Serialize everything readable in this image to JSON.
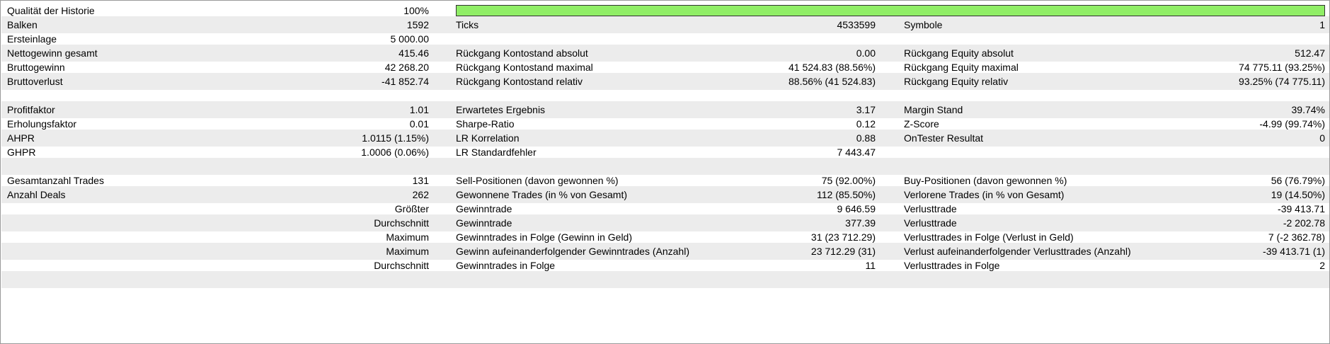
{
  "quality": {
    "label": "Qualität der Historie",
    "value": "100%",
    "fraction": 1.0,
    "bar_color": "#90ee66"
  },
  "rows": {
    "r1": {
      "c0": "Balken",
      "c1": "1592",
      "c2": "Ticks",
      "c3": "4533599",
      "c4": "Symbole",
      "c5": "1"
    },
    "r2": {
      "c0": "Ersteinlage",
      "c1": "5 000.00"
    },
    "r3": {
      "c0": "Nettogewinn gesamt",
      "c1": "415.46",
      "c2": "Rückgang Kontostand absolut",
      "c3": "0.00",
      "c4": "Rückgang Equity absolut",
      "c5": "512.47"
    },
    "r4": {
      "c0": "Bruttogewinn",
      "c1": "42 268.20",
      "c2": "Rückgang Kontostand maximal",
      "c3": "41 524.83 (88.56%)",
      "c4": "Rückgang Equity maximal",
      "c5": "74 775.11 (93.25%)"
    },
    "r5": {
      "c0": "Bruttoverlust",
      "c1": "-41 852.74",
      "c2": "Rückgang Kontostand relativ",
      "c3": "88.56% (41 524.83)",
      "c4": "Rückgang Equity relativ",
      "c5": "93.25% (74 775.11)"
    },
    "r7": {
      "c0": "Profitfaktor",
      "c1": "1.01",
      "c2": "Erwartetes Ergebnis",
      "c3": "3.17",
      "c4": "Margin Stand",
      "c5": "39.74%"
    },
    "r8": {
      "c0": "Erholungsfaktor",
      "c1": "0.01",
      "c2": "Sharpe-Ratio",
      "c3": "0.12",
      "c4": "Z-Score",
      "c5": "-4.99 (99.74%)"
    },
    "r9": {
      "c0": "AHPR",
      "c1": "1.0115 (1.15%)",
      "c2": "LR Korrelation",
      "c3": "0.88",
      "c4": "OnTester Resultat",
      "c5": "0"
    },
    "r10": {
      "c0": "GHPR",
      "c1": "1.0006 (0.06%)",
      "c2": "LR Standardfehler",
      "c3": "7 443.47"
    },
    "r12": {
      "c0": "Gesamtanzahl Trades",
      "c1": "131",
      "c2": "Sell-Positionen (davon gewonnen %)",
      "c3": "75 (92.00%)",
      "c4": "Buy-Positionen (davon gewonnen %)",
      "c5": "56 (76.79%)"
    },
    "r13": {
      "c0": "Anzahl Deals",
      "c1": "262",
      "c2": "Gewonnene Trades (in % von Gesamt)",
      "c3": "112 (85.50%)",
      "c4": "Verlorene Trades (in % von Gesamt)",
      "c5": "19 (14.50%)"
    },
    "r14": {
      "c1": "Größter",
      "c2": "Gewinntrade",
      "c3": "9 646.59",
      "c4": "Verlusttrade",
      "c5": "-39 413.71"
    },
    "r15": {
      "c1": "Durchschnitt",
      "c2": "Gewinntrade",
      "c3": "377.39",
      "c4": "Verlusttrade",
      "c5": "-2 202.78"
    },
    "r16": {
      "c1": "Maximum",
      "c2": "Gewinntrades in Folge (Gewinn in Geld)",
      "c3": "31 (23 712.29)",
      "c4": "Verlusttrades in Folge (Verlust in Geld)",
      "c5": "7 (-2 362.78)"
    },
    "r17": {
      "c1": "Maximum",
      "c2": "Gewinn aufeinanderfolgender Gewinntrades (Anzahl)",
      "c3": "23 712.29 (31)",
      "c4": "Verlust aufeinanderfolgender Verlusttrades (Anzahl)",
      "c5": "-39 413.71 (1)"
    },
    "r18": {
      "c1": "Durchschnitt",
      "c2": "Gewinntrades in Folge",
      "c3": "11",
      "c4": "Verlusttrades in Folge",
      "c5": "2"
    }
  }
}
